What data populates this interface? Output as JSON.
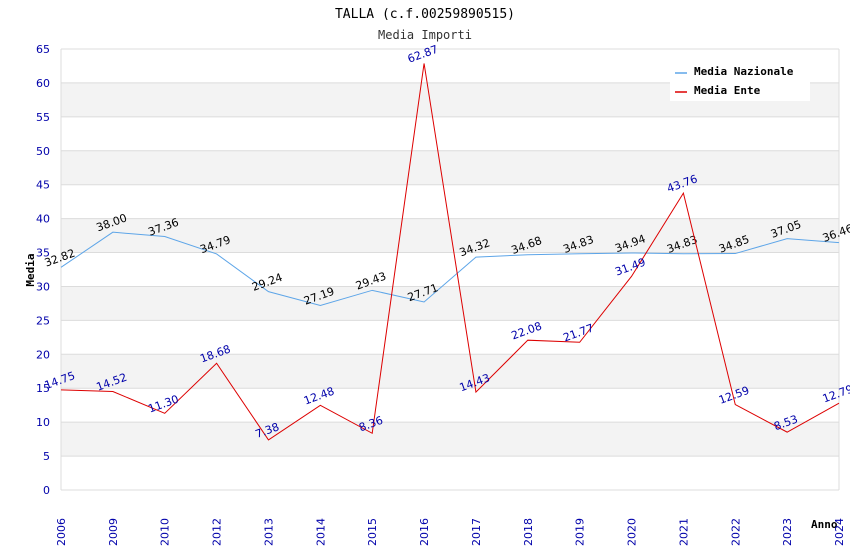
{
  "chart_data": {
    "type": "line",
    "title": "TALLA (c.f.00259890515)",
    "subtitle": "Media Importi",
    "xlabel": "Anno",
    "ylabel": "Media",
    "ylim": [
      0,
      65
    ],
    "yticks": [
      0,
      5,
      10,
      15,
      20,
      25,
      30,
      35,
      40,
      45,
      50,
      55,
      60,
      65
    ],
    "grid": "horizontal alternating bands",
    "legend_position": "top-right",
    "categories": [
      "2006",
      "2009",
      "2010",
      "2012",
      "2013",
      "2014",
      "2015",
      "2016",
      "2017",
      "2018",
      "2019",
      "2020",
      "2021",
      "2022",
      "2023",
      "2024"
    ],
    "series": [
      {
        "name": "Media Nazionale",
        "color": "#5da5e8",
        "values": [
          32.82,
          38.0,
          37.36,
          34.79,
          29.24,
          27.19,
          29.43,
          27.71,
          34.32,
          34.68,
          34.83,
          34.94,
          34.83,
          34.85,
          37.05,
          36.46
        ],
        "labels": [
          "32.82",
          "38.00",
          "37.36",
          "34.79",
          "29.24",
          "27.19",
          "29.43",
          "27.71",
          "34.32",
          "34.68",
          "34.83",
          "34.94",
          "34.83",
          "34.85",
          "37.05",
          "36.46"
        ]
      },
      {
        "name": "Media Ente",
        "color": "#dd0000",
        "values": [
          14.75,
          14.52,
          11.3,
          18.68,
          7.38,
          12.48,
          8.36,
          62.87,
          14.43,
          22.08,
          21.77,
          31.49,
          43.76,
          12.59,
          8.53,
          12.79
        ],
        "labels": [
          "14.75",
          "14.52",
          "11.30",
          "18.68",
          "7.38",
          "12.48",
          "8.36",
          "62.87",
          "14.43",
          "22.08",
          "21.77",
          "31.49",
          "43.76",
          "12.59",
          "8.53",
          "12.79"
        ]
      }
    ]
  }
}
